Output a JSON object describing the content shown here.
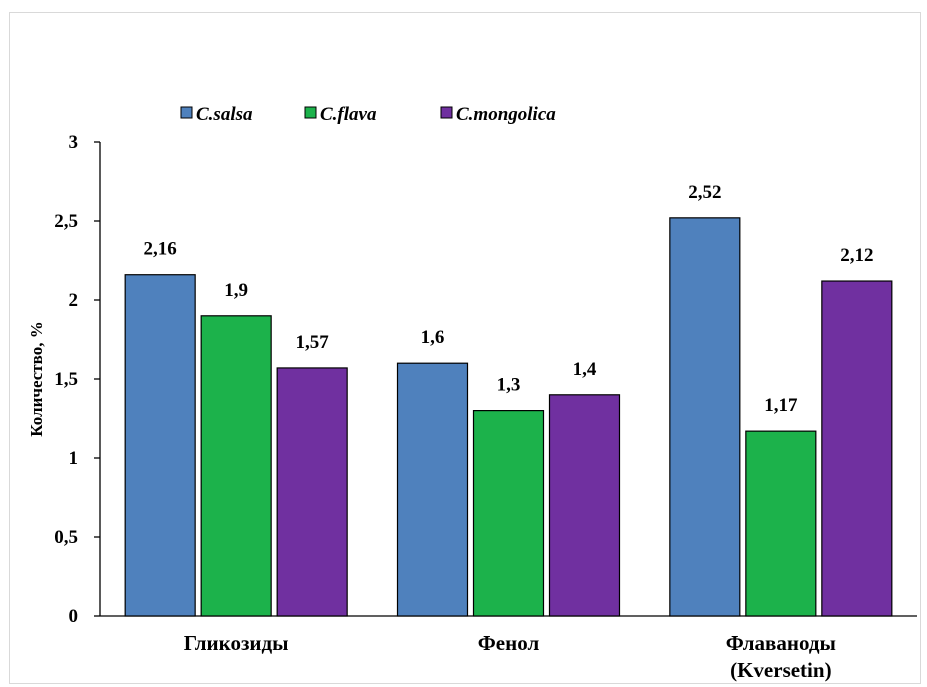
{
  "chart_data": {
    "type": "bar",
    "categories": [
      "Гликозиды",
      "Фенол",
      "Флаваноды (Kversetin)"
    ],
    "category_lines": [
      [
        "Гликозиды"
      ],
      [
        "Фенол"
      ],
      [
        "Флаваноды",
        "(Kversetin)"
      ]
    ],
    "series": [
      {
        "name": "C.salsa",
        "values": [
          2.16,
          1.6,
          2.52
        ],
        "labels": [
          "2,16",
          "1,6",
          "2,52"
        ],
        "color": "#4f81bd"
      },
      {
        "name": "C.flava",
        "values": [
          1.9,
          1.3,
          1.17
        ],
        "labels": [
          "1,9",
          "1,3",
          "1,17"
        ],
        "color": "#1cb24b"
      },
      {
        "name": "C.mongolica",
        "values": [
          1.57,
          1.4,
          2.12
        ],
        "labels": [
          "1,57",
          "1,4",
          "2,12"
        ],
        "color": "#7030a0"
      }
    ],
    "ylabel": "Количество, %",
    "ylim": [
      0,
      3
    ],
    "yticks": [
      0,
      0.5,
      1,
      1.5,
      2,
      2.5,
      3
    ],
    "ytick_labels": [
      "0",
      "0,5",
      "1",
      "1,5",
      "2",
      "2,5",
      "3"
    ],
    "grid": false,
    "legend_position": "top-left"
  }
}
